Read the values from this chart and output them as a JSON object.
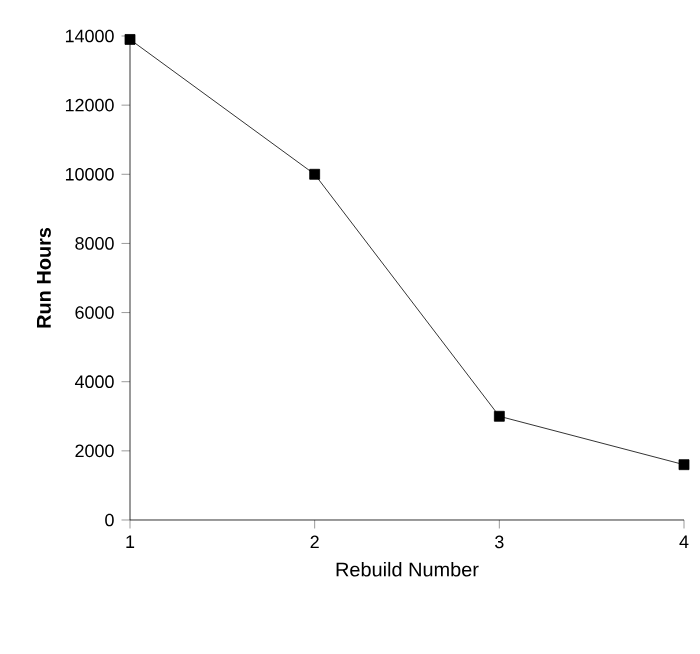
{
  "chart_data": {
    "type": "line",
    "xlabel": "Rebuild Number",
    "ylabel": "Run Hours",
    "x": [
      1,
      2,
      3,
      4
    ],
    "values": [
      13900,
      10000,
      3000,
      1600
    ],
    "color": "#000000",
    "xlim": [
      1,
      4
    ],
    "xticks": [
      1,
      2,
      3,
      4
    ],
    "ylim": [
      0,
      14000
    ],
    "yticks": [
      0,
      2000,
      4000,
      6000,
      8000,
      10000,
      12000,
      14000
    ],
    "marker": "square",
    "line_style": "solid",
    "grid": false
  }
}
